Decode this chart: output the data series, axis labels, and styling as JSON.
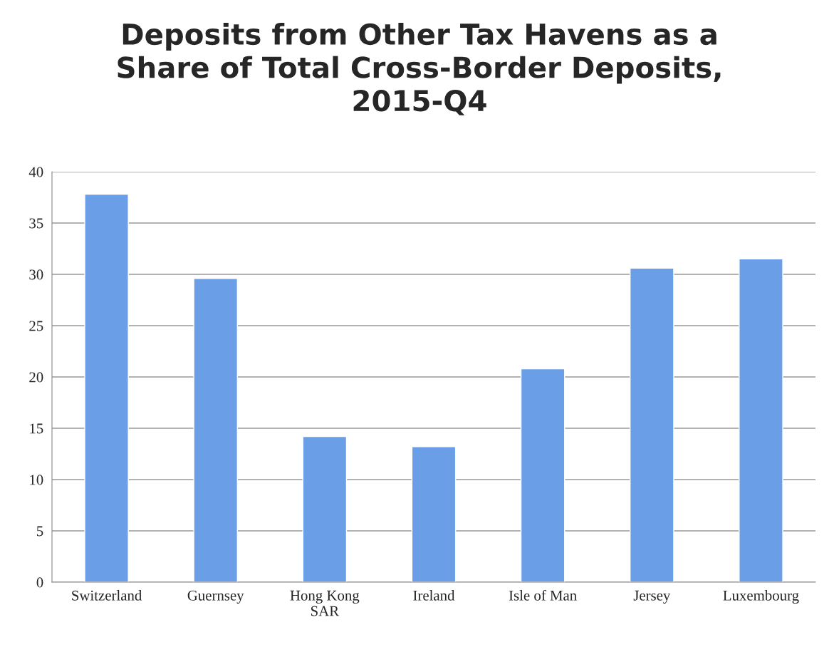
{
  "chart_data": {
    "type": "bar",
    "title": "Deposits from Other Tax Havens as a\nShare of Total Cross-Border Deposits,\n2015-Q4",
    "categories": [
      "Switzerland",
      "Guernsey",
      "Hong Kong\nSAR",
      "Ireland",
      "Isle of Man",
      "Jersey",
      "Luxembourg"
    ],
    "values": [
      37.8,
      29.6,
      14.2,
      13.2,
      20.8,
      30.6,
      31.5
    ],
    "color": "#6a9fe8",
    "ylim": [
      0,
      40
    ],
    "yticks": [
      0,
      5,
      10,
      15,
      20,
      25,
      30,
      35,
      40
    ],
    "grid": "y",
    "legend": false
  }
}
